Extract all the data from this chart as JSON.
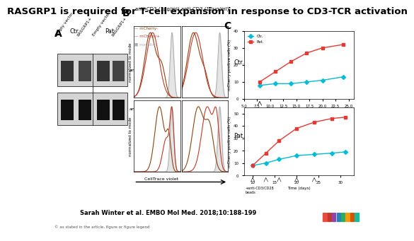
{
  "title": "RASGRP1 is required for T-cell expansion in response to CD3-TCR activation",
  "title_fontsize": 9.5,
  "citation": "Sarah Winter et al. EMBO Mol Med. 2018;10:188-199",
  "copyright": "© as stated in the article, figure or figure legend",
  "bg_color": "#ffffff",
  "panel_A_label": "A",
  "panel_B_label": "B",
  "panel_C_label": "C",
  "embo_box_color": "#1a5fa8",
  "ctr_line_color": "#00bcd4",
  "pat_line_color": "#e53935",
  "mcherry_neg_color": "#8B4513",
  "mcherry_pos_color": "#c0392b",
  "non_stim_color": "#aaaaaa"
}
